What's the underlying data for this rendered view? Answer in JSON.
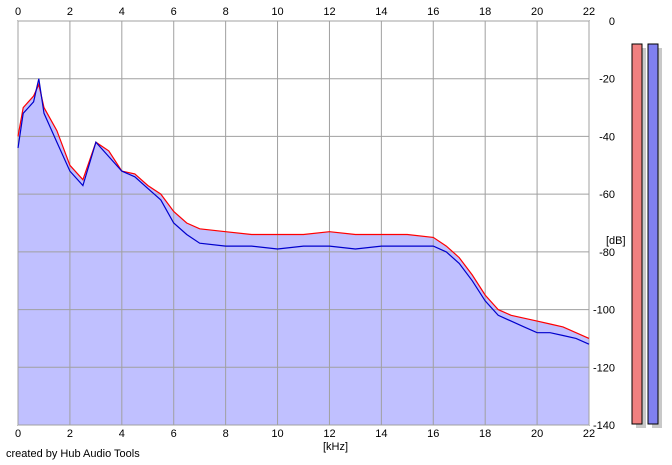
{
  "footer": {
    "credit": "created by Hub Audio Tools"
  },
  "chart_data": {
    "type": "area",
    "xlabel": "[kHz]",
    "ylabel": "[dB]",
    "xlim": [
      0,
      22
    ],
    "ylim": [
      -140,
      0
    ],
    "x_ticks": [
      0,
      2,
      4,
      6,
      8,
      10,
      12,
      14,
      16,
      18,
      20,
      22
    ],
    "y_ticks": [
      0,
      -20,
      -40,
      -60,
      -80,
      -100,
      -120,
      -140
    ],
    "grid": true,
    "fill_color": "#c0c0ff",
    "series": [
      {
        "color": "#ff0000",
        "x": [
          0,
          0.2,
          0.4,
          0.6,
          0.8,
          1,
          1.5,
          2,
          2.5,
          3,
          3.5,
          4,
          4.5,
          5,
          5.5,
          6,
          6.5,
          7,
          8,
          9,
          10,
          11,
          12,
          13,
          14,
          15,
          16,
          16.5,
          17,
          17.5,
          18,
          18.5,
          19,
          19.5,
          20,
          20.5,
          21,
          21.5,
          22
        ],
        "values": [
          -40,
          -30,
          -28,
          -26,
          -22,
          -30,
          -38,
          -50,
          -55,
          -42,
          -45,
          -52,
          -53,
          -57,
          -60,
          -66,
          -70,
          -72,
          -73,
          -74,
          -74,
          -74,
          -73,
          -74,
          -74,
          -74,
          -75,
          -78,
          -82,
          -88,
          -95,
          -100,
          -102,
          -103,
          -104,
          -105,
          -106,
          -108,
          -110
        ]
      },
      {
        "color": "#0000cc",
        "x": [
          0,
          0.2,
          0.4,
          0.6,
          0.8,
          1,
          1.5,
          2,
          2.5,
          3,
          3.5,
          4,
          4.5,
          5,
          5.5,
          6,
          6.5,
          7,
          8,
          9,
          10,
          11,
          12,
          13,
          14,
          15,
          16,
          16.5,
          17,
          17.5,
          18,
          18.5,
          19,
          19.5,
          20,
          20.5,
          21,
          21.5,
          22
        ],
        "values": [
          -44,
          -32,
          -30,
          -28,
          -20,
          -32,
          -42,
          -52,
          -57,
          -42,
          -47,
          -52,
          -54,
          -58,
          -62,
          -70,
          -74,
          -77,
          -78,
          -78,
          -79,
          -78,
          -78,
          -79,
          -78,
          -78,
          -78,
          -80,
          -84,
          -90,
          -97,
          -102,
          -104,
          -106,
          -108,
          -108,
          -109,
          -110,
          -112
        ]
      }
    ]
  },
  "level_meters": [
    {
      "color": "#f08080",
      "level": 0
    },
    {
      "color": "#8080f0",
      "level": 0
    }
  ]
}
